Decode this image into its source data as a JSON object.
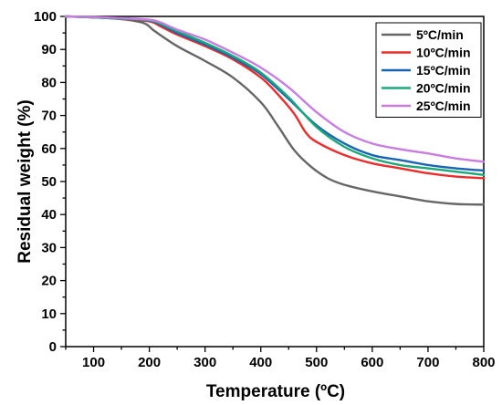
{
  "chart_data": {
    "type": "line",
    "xlabel": "Temperature (ºC)",
    "ylabel": "Residual weight (%)",
    "xlim": [
      50,
      800
    ],
    "ylim": [
      0,
      100
    ],
    "xticks": [
      100,
      200,
      300,
      400,
      500,
      600,
      700,
      800
    ],
    "yticks": [
      0,
      10,
      20,
      30,
      40,
      50,
      60,
      70,
      80,
      90,
      100
    ],
    "grid": false,
    "legend_position": "top-right",
    "series": [
      {
        "name": "5ºC/min",
        "color": "#666666",
        "x": [
          50,
          100,
          150,
          190,
          210,
          250,
          300,
          350,
          400,
          430,
          460,
          490,
          520,
          550,
          600,
          650,
          700,
          750,
          800
        ],
        "y": [
          100,
          99.8,
          99.2,
          98,
          95.5,
          91,
          86.5,
          81.5,
          74,
          67,
          59.5,
          54.5,
          51,
          49,
          47,
          45.5,
          44,
          43.2,
          43
        ]
      },
      {
        "name": "10ºC/min",
        "color": "#ee2b2b",
        "x": [
          50,
          100,
          150,
          200,
          220,
          250,
          300,
          350,
          400,
          430,
          460,
          480,
          500,
          550,
          600,
          650,
          700,
          750,
          800
        ],
        "y": [
          100,
          99.7,
          99.2,
          98.5,
          97,
          94.5,
          91,
          87,
          81.5,
          76.5,
          70.5,
          65,
          62,
          58,
          55.5,
          54,
          52.5,
          51.5,
          51
        ]
      },
      {
        "name": "15ºC/min",
        "color": "#1a64b4",
        "x": [
          50,
          100,
          150,
          200,
          220,
          250,
          300,
          350,
          400,
          450,
          500,
          550,
          600,
          650,
          700,
          750,
          800
        ],
        "y": [
          100,
          99.7,
          99.3,
          98.7,
          97.5,
          95,
          91.5,
          87.5,
          82.5,
          75,
          67,
          61.5,
          58,
          56.5,
          55,
          54,
          53.3
        ]
      },
      {
        "name": "20ºC/min",
        "color": "#1aa878",
        "x": [
          50,
          100,
          150,
          200,
          220,
          250,
          300,
          350,
          400,
          450,
          500,
          550,
          600,
          650,
          700,
          750,
          800
        ],
        "y": [
          100,
          99.7,
          99.3,
          98.8,
          97.8,
          95.5,
          92,
          88,
          83,
          75.5,
          66.5,
          60.5,
          57,
          55,
          54,
          53,
          52
        ]
      },
      {
        "name": "25ºC/min",
        "color": "#c87de0",
        "x": [
          50,
          100,
          150,
          200,
          220,
          250,
          300,
          350,
          400,
          450,
          500,
          550,
          600,
          650,
          700,
          750,
          800
        ],
        "y": [
          100,
          99.8,
          99.5,
          99,
          98.2,
          96,
          93,
          89,
          84.5,
          78.5,
          71,
          65,
          61.5,
          59.8,
          58.5,
          57,
          56
        ]
      }
    ]
  }
}
